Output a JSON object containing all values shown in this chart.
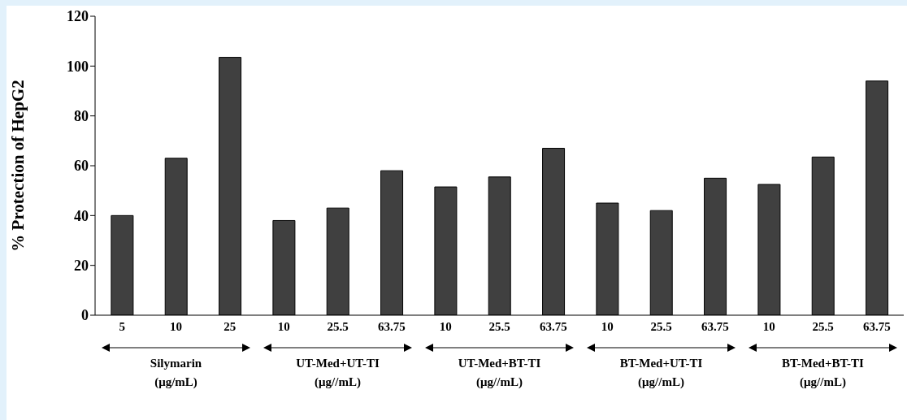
{
  "chart_data": {
    "type": "bar",
    "ylabel": "% Protection of HepG2",
    "categories": [
      "5",
      "10",
      "25",
      "10",
      "25.5",
      "63.75",
      "10",
      "25.5",
      "63.75",
      "10",
      "25.5",
      "63.75",
      "10",
      "25.5",
      "63.75"
    ],
    "values": [
      40,
      63,
      103.5,
      38,
      43,
      58,
      51.5,
      55.5,
      67,
      45,
      42,
      55,
      52.5,
      63.5,
      94
    ],
    "color": "#404040",
    "ylim": [
      0,
      120
    ],
    "yticks": [
      0,
      20,
      40,
      60,
      80,
      100,
      120
    ],
    "grid": false,
    "annotations": [
      "Silymarin\n(μg/mL)",
      "UT-Med+UT-TI\n(μg//mL)",
      "UT-Med+BT-TI\n(μg//mL)",
      "BT-Med+UT-TI\n(μg//mL)",
      "BT-Med+BT-TI\n(μg//mL)"
    ]
  }
}
